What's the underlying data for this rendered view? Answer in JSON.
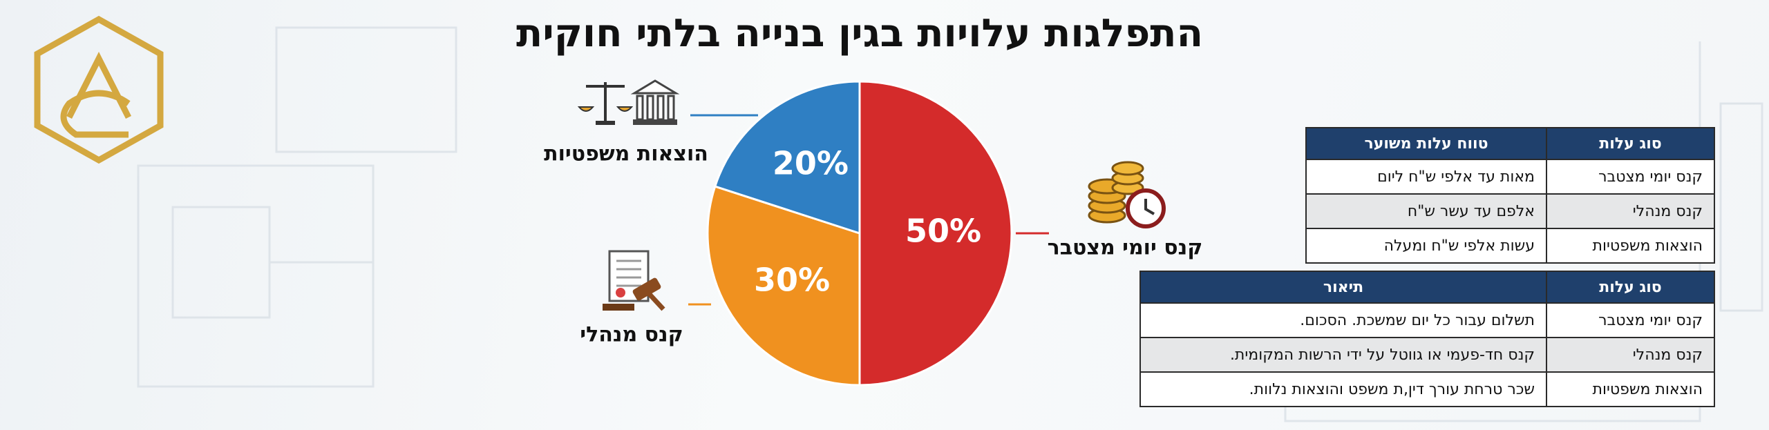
{
  "chart_data": {
    "type": "pie",
    "title": "התפלגות עלויות בגין בנייה בלתי חוקית",
    "categories": [
      "קנס יומי מצטבר",
      "קנס מנהלי",
      "הוצאות משפטיות"
    ],
    "values": [
      50,
      30,
      20
    ],
    "value_labels": [
      "50%",
      "30%",
      "20%"
    ],
    "colors": [
      "#d42b2b",
      "#f0911f",
      "#2f7fc3"
    ]
  },
  "tables": [
    {
      "headers": [
        "סוג עלות",
        "טווח עלות משוער"
      ],
      "rows": [
        [
          "קנס יומי מצטבר",
          "מאות עד אלפי ש\"ח ליום"
        ],
        [
          "קנס מנהלי",
          "אלפם עד עשר ש\"ח"
        ],
        [
          "הוצאות משפטיות",
          "עשות אלפי ש\"ח ומעלה"
        ]
      ]
    },
    {
      "headers": [
        "סוג עלות",
        "תיאור"
      ],
      "rows": [
        [
          "קנס יומי מצטבר",
          "תשלום עבור כל יום שמשכת. הסכום."
        ],
        [
          "קנס מנהלי",
          "קנס חד-פעמי או גווטל על ידי הרשות המקומית."
        ],
        [
          "הוצאות משפטיות",
          "שכר טרחת עורך דין,ת משפט והוצאות נלוות."
        ]
      ]
    }
  ]
}
